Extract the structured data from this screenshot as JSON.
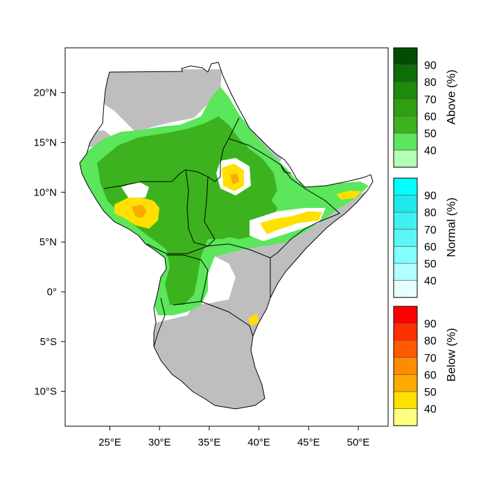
{
  "map": {
    "lon_ticks": [
      "25°E",
      "30°E",
      "35°E",
      "40°E",
      "45°E",
      "50°E"
    ],
    "lat_ticks": [
      "20°N",
      "15°N",
      "10°N",
      "5°N",
      "0°",
      "5°S",
      "10°S"
    ],
    "extent": {
      "lon": [
        20.5,
        53
      ],
      "lat": [
        -13.5,
        24.5
      ]
    }
  },
  "legend": {
    "above": {
      "title": "Above (%)",
      "ticks": [
        "40",
        "50",
        "60",
        "70",
        "80",
        "90"
      ],
      "colors": [
        "#b3ffb3",
        "#5be65b",
        "#3cb31e",
        "#2f9e12",
        "#1f8a0a",
        "#0d6e06",
        "#034d03"
      ]
    },
    "normal": {
      "title": "Normal (%)",
      "ticks": [
        "40",
        "50",
        "60",
        "70",
        "80",
        "90"
      ],
      "colors": [
        "#e6ffff",
        "#b3ffff",
        "#80ffff",
        "#5cf6f6",
        "#3ef0f0",
        "#1ee8e8",
        "#00ffff"
      ]
    },
    "below": {
      "title": "Below (%)",
      "ticks": [
        "40",
        "50",
        "60",
        "70",
        "80",
        "90"
      ],
      "colors": [
        "#ffff80",
        "#ffe000",
        "#ffaa00",
        "#ff8c00",
        "#ff5a00",
        "#ff3000",
        "#ff0000"
      ]
    }
  },
  "colors": {
    "no_signal": "#bebebe",
    "above_40_50": "#5be65b",
    "above_50_60": "#3cb31e",
    "below_40_50": "#ffe000",
    "below_50_60": "#ffaa00",
    "land_white": "#ffffff",
    "border": "#000000"
  }
}
